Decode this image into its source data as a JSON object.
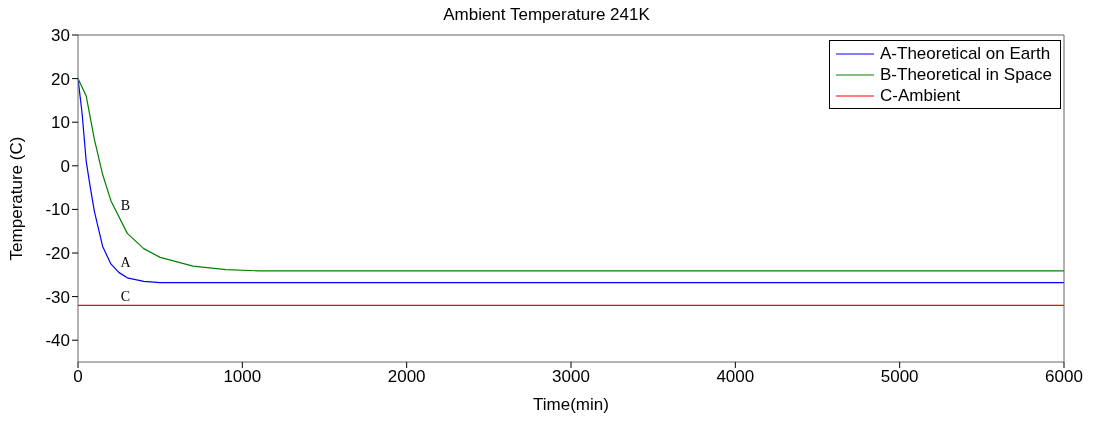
{
  "chart_data": {
    "type": "line",
    "title": "Ambient Temperature 241K",
    "xlabel": "Time(min)",
    "ylabel": "Temperature (C)",
    "xlim": [
      0,
      6000
    ],
    "xticks": [
      0,
      1000,
      2000,
      3000,
      4000,
      5000,
      6000
    ],
    "ylim": [
      -45,
      30
    ],
    "yticks": [
      -40,
      -30,
      -20,
      -10,
      0,
      10,
      20,
      30
    ],
    "grid": false,
    "legend": "top right",
    "marker": "none",
    "line_style": "solid",
    "series": [
      {
        "name": "A-Theoretical on Earth",
        "color": "#0000ff",
        "x": [
          0,
          25,
          50,
          75,
          100,
          150,
          200,
          250,
          300,
          400,
          500,
          6000
        ],
        "values": [
          20,
          12,
          1,
          -5,
          -10.5,
          -18.5,
          -22.5,
          -24.5,
          -25.7,
          -26.5,
          -26.8,
          -26.8
        ]
      },
      {
        "name": "B-Theoretical in Space",
        "color": "#008000",
        "x": [
          0,
          50,
          100,
          150,
          200,
          300,
          400,
          500,
          700,
          900,
          1100,
          6000
        ],
        "values": [
          20,
          16,
          6,
          -2,
          -8,
          -15.5,
          -19,
          -21,
          -23,
          -23.8,
          -24.1,
          -24.1
        ]
      },
      {
        "name": "C-Ambient",
        "color": "#ff0000",
        "x": [
          0,
          6000
        ],
        "values": [
          -32,
          -32
        ]
      }
    ],
    "annotations": [
      "A",
      "B",
      "C"
    ]
  }
}
